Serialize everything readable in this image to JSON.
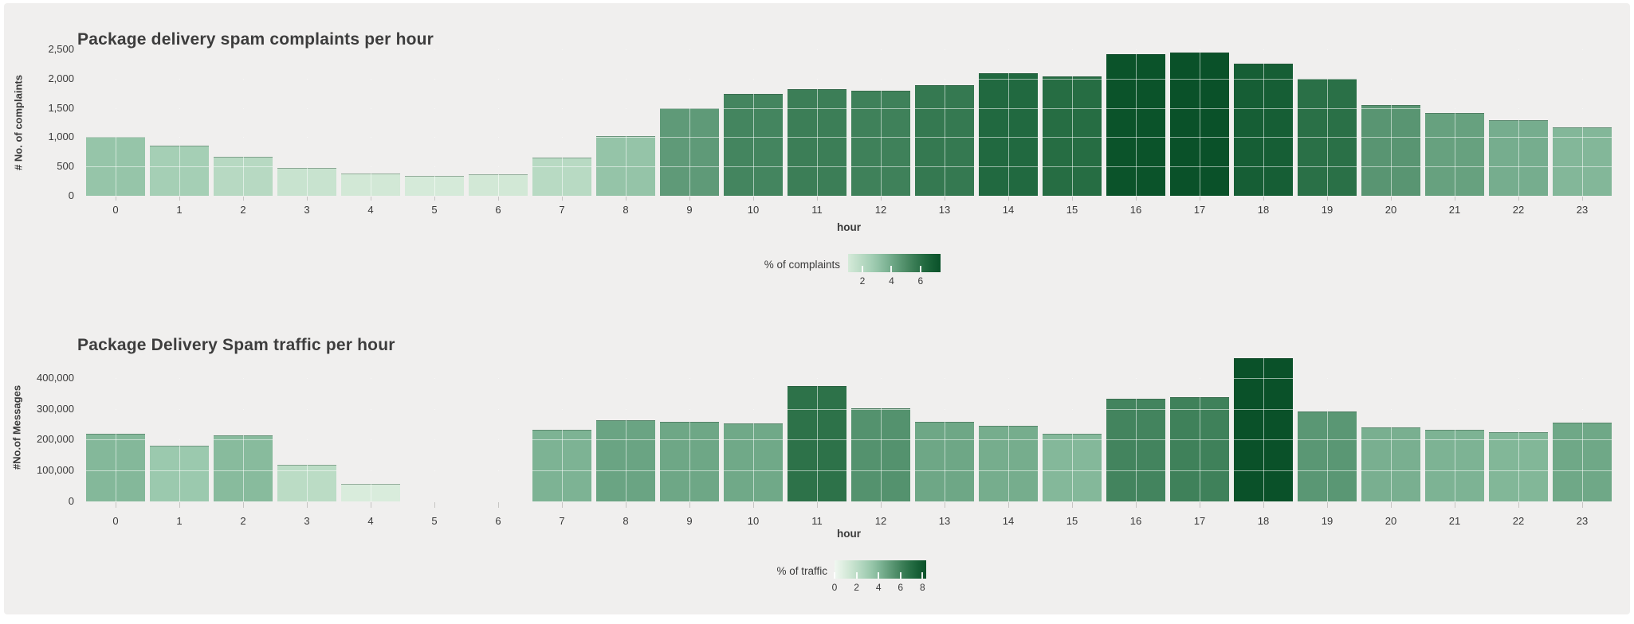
{
  "page": {
    "background": "#f0efee",
    "frame": "#ffffff",
    "text_color": "#3a3a3a",
    "grid_color_under": "#dddcda",
    "grid_color_over": "rgba(255,255,255,0.55)"
  },
  "colors": {
    "scale": [
      {
        "t": 0.0,
        "c": "#f0f7f1"
      },
      {
        "t": 0.13,
        "c": "#d7ebda"
      },
      {
        "t": 0.25,
        "c": "#bcdcc6"
      },
      {
        "t": 0.38,
        "c": "#9ecbb0"
      },
      {
        "t": 0.5,
        "c": "#7db394"
      },
      {
        "t": 0.62,
        "c": "#5c9875"
      },
      {
        "t": 0.75,
        "c": "#3a7d55"
      },
      {
        "t": 0.88,
        "c": "#1b643a"
      },
      {
        "t": 1.0,
        "c": "#0a5129"
      }
    ]
  },
  "chart_data": [
    {
      "type": "bar",
      "title": "Package delivery spam complaints per hour",
      "xlabel": "hour",
      "ylabel": "# No. of complaints",
      "categories": [
        0,
        1,
        2,
        3,
        4,
        5,
        6,
        7,
        8,
        9,
        10,
        11,
        12,
        13,
        14,
        15,
        16,
        17,
        18,
        19,
        20,
        21,
        22,
        23
      ],
      "values": [
        1000,
        860,
        665,
        480,
        375,
        335,
        370,
        655,
        1015,
        1495,
        1740,
        1820,
        1790,
        1890,
        2090,
        2045,
        2425,
        2450,
        2250,
        2000,
        1550,
        1420,
        1285,
        1170
      ],
      "ylim": [
        0,
        2500
      ],
      "y_ticks": [
        0,
        500,
        1000,
        1500,
        2000,
        2500
      ],
      "grid": true,
      "legend": {
        "label": "% of complaints",
        "ticks": [
          2,
          4,
          6
        ],
        "position": "bottom-center",
        "note": "gradient colorbar; bar color encodes share of daily total complaints"
      }
    },
    {
      "type": "bar",
      "title": "Package Delivery Spam traffic per hour",
      "xlabel": "hour",
      "ylabel": "#No.of Messages",
      "categories": [
        0,
        1,
        2,
        3,
        4,
        5,
        6,
        7,
        8,
        9,
        10,
        11,
        12,
        13,
        14,
        15,
        16,
        17,
        18,
        19,
        20,
        21,
        22,
        23
      ],
      "values": [
        220000,
        181000,
        214000,
        118000,
        56000,
        0,
        0,
        233000,
        264000,
        258000,
        254000,
        375000,
        302000,
        258000,
        245000,
        220000,
        332000,
        339000,
        465000,
        291000,
        240000,
        233000,
        224000,
        256000
      ],
      "ylim": [
        0,
        477000
      ],
      "y_ticks": [
        0,
        100000,
        200000,
        300000,
        400000
      ],
      "grid": true,
      "legend": {
        "label": "% of traffic",
        "ticks": [
          0,
          2,
          4,
          6,
          8
        ],
        "position": "bottom-center",
        "note": "gradient colorbar; bar color encodes share of daily total traffic"
      }
    }
  ]
}
